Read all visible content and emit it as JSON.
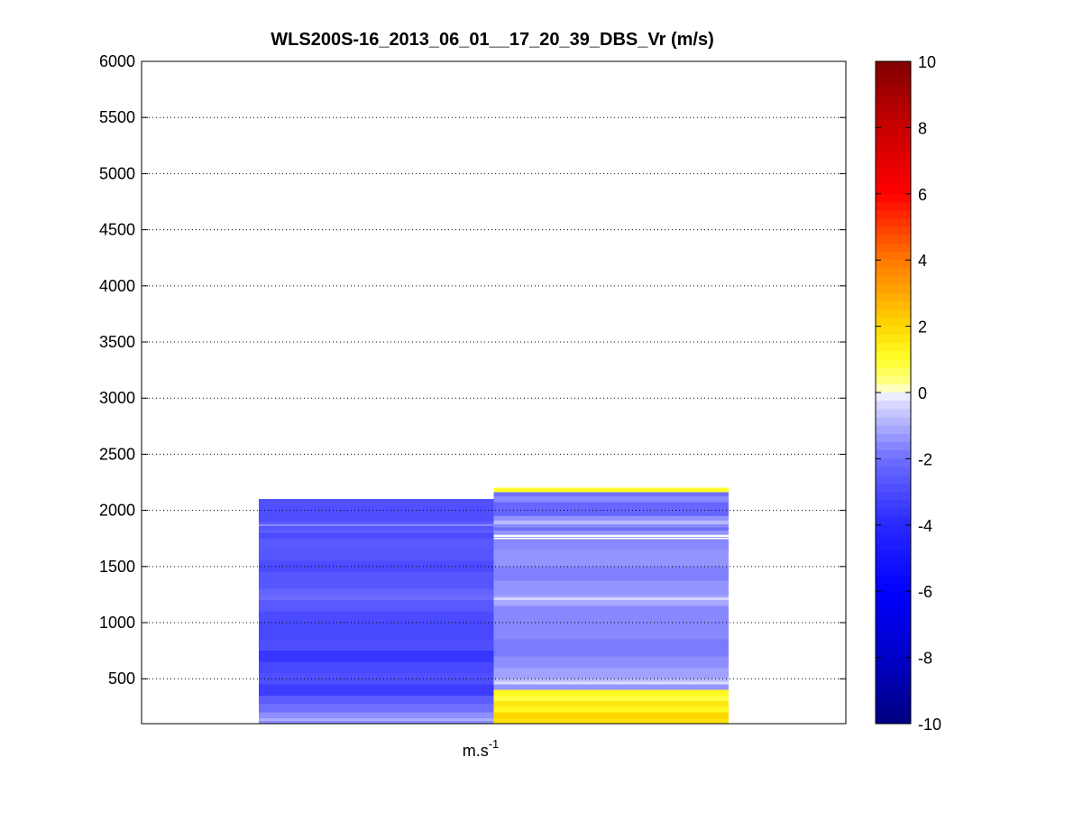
{
  "chart_data": {
    "type": "heatmap",
    "title": "WLS200S-16_2013_06_01__17_20_39_DBS_Vr (m/s)",
    "xlabel": "m.s",
    "xlabel_sup": "-1",
    "ylabel": "",
    "ylim": [
      100,
      6000
    ],
    "yticks": [
      500,
      1000,
      1500,
      2000,
      2500,
      3000,
      3500,
      4000,
      4500,
      5000,
      5500,
      6000
    ],
    "grid": true,
    "grid_style": "dotted",
    "colorbar": {
      "colormap": "blue-white-yellow-red",
      "range": [
        -10,
        10
      ],
      "ticks": [
        -10,
        -8,
        -6,
        -4,
        -2,
        0,
        2,
        4,
        6,
        8,
        10
      ],
      "white_band": [
        -0.2,
        0.2
      ]
    },
    "columns": [
      {
        "name": "",
        "x_range": [
          0.5,
          1.5
        ],
        "altitude_range": [
          100,
          2100
        ],
        "bin_height": 25,
        "segments": [
          {
            "top": 2100,
            "value": -2.8
          },
          {
            "top": 2050,
            "value": -2.9
          },
          {
            "top": 1900,
            "value": -2.5
          },
          {
            "top": 1875,
            "value": -1.6
          },
          {
            "top": 1860,
            "value": -2.7
          },
          {
            "top": 1825,
            "value": -2.4
          },
          {
            "top": 1800,
            "value": -3.0
          },
          {
            "top": 1750,
            "value": -2.6
          },
          {
            "top": 1650,
            "value": -2.7
          },
          {
            "top": 1550,
            "value": -3.0
          },
          {
            "top": 1450,
            "value": -2.7
          },
          {
            "top": 1300,
            "value": -2.3
          },
          {
            "top": 1250,
            "value": -2.1
          },
          {
            "top": 1200,
            "value": -2.6
          },
          {
            "top": 1100,
            "value": -3.0
          },
          {
            "top": 1000,
            "value": -3.1
          },
          {
            "top": 850,
            "value": -2.9
          },
          {
            "top": 750,
            "value": -3.6
          },
          {
            "top": 650,
            "value": -3.1
          },
          {
            "top": 550,
            "value": -2.9
          },
          {
            "top": 450,
            "value": -3.4
          },
          {
            "top": 350,
            "value": -2.5
          },
          {
            "top": 275,
            "value": -2.0
          },
          {
            "top": 200,
            "value": -1.5
          },
          {
            "top": 150,
            "value": -1.0
          },
          {
            "top": 125,
            "value": -1.5
          }
        ]
      },
      {
        "name": "",
        "x_range": [
          1.5,
          2.5
        ],
        "altitude_range": [
          100,
          2200
        ],
        "bin_height": 25,
        "segments": [
          {
            "top": 2200,
            "value": 1.0
          },
          {
            "top": 2160,
            "value": -2.0
          },
          {
            "top": 2125,
            "value": -1.6
          },
          {
            "top": 2075,
            "value": -2.2
          },
          {
            "top": 1950,
            "value": -1.4
          },
          {
            "top": 1910,
            "value": -0.8
          },
          {
            "top": 1875,
            "value": -1.6
          },
          {
            "top": 1850,
            "value": -2.0
          },
          {
            "top": 1820,
            "value": -1.4
          },
          {
            "top": 1790,
            "value": -1.0
          },
          {
            "top": 1780,
            "value": 0.0
          },
          {
            "top": 1765,
            "value": -1.2
          },
          {
            "top": 1755,
            "value": 0.0
          },
          {
            "top": 1745,
            "value": -1.6
          },
          {
            "top": 1650,
            "value": -1.4
          },
          {
            "top": 1500,
            "value": -1.7
          },
          {
            "top": 1375,
            "value": -1.4
          },
          {
            "top": 1250,
            "value": -1.2
          },
          {
            "top": 1225,
            "value": -0.4
          },
          {
            "top": 1200,
            "value": -1.1
          },
          {
            "top": 1150,
            "value": -1.6
          },
          {
            "top": 950,
            "value": -1.6
          },
          {
            "top": 850,
            "value": -1.8
          },
          {
            "top": 700,
            "value": -1.5
          },
          {
            "top": 600,
            "value": -1.2
          },
          {
            "top": 500,
            "value": -0.8
          },
          {
            "top": 475,
            "value": -0.3
          },
          {
            "top": 450,
            "value": -1.4
          },
          {
            "top": 400,
            "value": 1.2
          },
          {
            "top": 350,
            "value": 0.8
          },
          {
            "top": 300,
            "value": 1.6
          },
          {
            "top": 250,
            "value": 1.2
          },
          {
            "top": 200,
            "value": 2.0
          },
          {
            "top": 150,
            "value": 1.8
          }
        ]
      }
    ]
  }
}
